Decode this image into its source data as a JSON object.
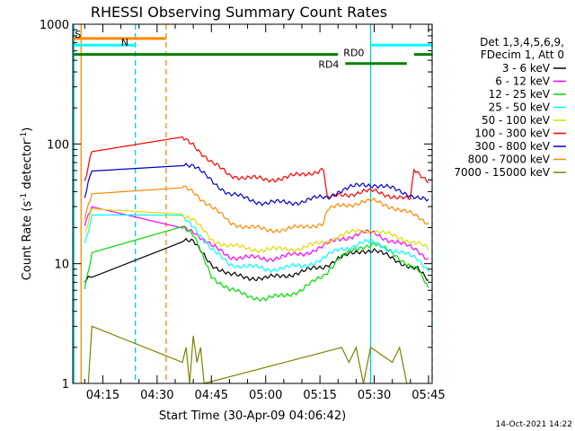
{
  "chart_data": {
    "type": "line",
    "title": "RHESSI Observing Summary Count Rates",
    "xlabel": "Start Time (30-Apr-09 04:06:42)",
    "ylabel": "Count Rate (s⁻¹ detector⁻¹)",
    "ylabel_parts": {
      "main": "Count Rate (s",
      "exp1": "-1",
      "mid": " detector",
      "exp2": "-1",
      "end": ")"
    },
    "yscale": "log",
    "ylim": [
      1,
      1000
    ],
    "xlim": [
      "04:06:42",
      "05:46:00"
    ],
    "x_ticks": [
      "04:15",
      "04:30",
      "04:45",
      "05:00",
      "05:15",
      "05:30",
      "05:45"
    ],
    "y_ticks": [
      "1",
      "10",
      "100",
      "1000"
    ],
    "legend_title": [
      "Det 1,3,4,5,6,9,",
      "FDecim 1, Att 0"
    ],
    "series": [
      {
        "name": "3 - 6 keV",
        "color": "#000000",
        "x": [
          "04:10",
          "04:12",
          "04:37",
          "04:40",
          "04:45",
          "04:50",
          "05:00",
          "05:10",
          "05:16",
          "05:20",
          "05:27",
          "05:30",
          "05:35",
          "05:42",
          "05:45"
        ],
        "y": [
          7,
          8,
          16,
          15,
          10,
          8,
          7.5,
          8.5,
          9.5,
          11,
          13,
          13,
          11,
          9,
          7
        ]
      },
      {
        "name": "6 - 12 keV",
        "color": "#ff00ff",
        "x": [
          "04:10",
          "04:12",
          "04:37",
          "04:40",
          "04:45",
          "04:50",
          "05:00",
          "05:10",
          "05:16",
          "05:20",
          "05:27",
          "05:30",
          "05:35",
          "05:42",
          "05:45"
        ],
        "y": [
          22,
          30,
          20,
          19,
          14,
          11.5,
          11,
          12,
          14,
          16,
          18,
          18,
          15.5,
          13,
          11
        ]
      },
      {
        "name": "12 - 25 keV",
        "color": "#00dd00",
        "x": [
          "04:10",
          "04:12",
          "04:37",
          "04:40",
          "04:45",
          "04:50",
          "05:00",
          "05:10",
          "05:16",
          "05:20",
          "05:27",
          "05:30",
          "05:35",
          "05:42",
          "05:45"
        ],
        "y": [
          6,
          12,
          21,
          17,
          8,
          6,
          5,
          6,
          8,
          11,
          14,
          15,
          12,
          9,
          6
        ]
      },
      {
        "name": "25 - 50 keV",
        "color": "#00ffff",
        "x": [
          "04:10",
          "04:12",
          "04:37",
          "04:40",
          "04:45",
          "04:50",
          "05:00",
          "05:10",
          "05:16",
          "05:20",
          "05:27",
          "05:30",
          "05:35",
          "05:42",
          "05:45"
        ],
        "y": [
          15,
          25,
          24,
          21,
          13,
          10,
          9,
          9.5,
          11,
          13,
          15,
          15,
          13,
          11,
          9
        ]
      },
      {
        "name": "50 - 100 keV",
        "color": "#dddd00",
        "x": [
          "04:10",
          "04:12",
          "04:37",
          "04:40",
          "04:45",
          "04:50",
          "05:00",
          "05:10",
          "05:16",
          "05:20",
          "05:27",
          "05:30",
          "05:35",
          "05:42",
          "05:45"
        ],
        "y": [
          17,
          28,
          26,
          23,
          16,
          14,
          13,
          13.5,
          15,
          17,
          19,
          19,
          17,
          15,
          13
        ]
      },
      {
        "name": "100 - 300 keV",
        "color": "#ff0000",
        "x": [
          "04:10",
          "04:12",
          "04:37",
          "04:40",
          "04:45",
          "04:50",
          "05:00",
          "05:10",
          "05:16",
          "05:17",
          "05:20",
          "05:27",
          "05:30",
          "05:35",
          "05:40",
          "05:41",
          "05:45"
        ],
        "y": [
          50,
          90,
          110,
          100,
          70,
          55,
          50,
          55,
          62,
          35,
          37,
          40,
          40,
          37,
          34,
          60,
          50
        ]
      },
      {
        "name": "300 - 800 keV",
        "color": "#0000cc",
        "x": [
          "04:10",
          "04:12",
          "04:37",
          "04:40",
          "04:45",
          "04:50",
          "05:00",
          "05:10",
          "05:16",
          "05:17",
          "05:20",
          "05:27",
          "05:30",
          "05:35",
          "05:40",
          "05:45"
        ],
        "y": [
          35,
          60,
          70,
          65,
          50,
          38,
          32,
          33,
          36,
          36,
          40,
          46,
          46,
          42,
          38,
          33
        ]
      },
      {
        "name": "800 - 7000 keV",
        "color": "#ff8800",
        "x": [
          "04:10",
          "04:12",
          "04:37",
          "04:40",
          "04:45",
          "04:50",
          "05:00",
          "05:10",
          "05:16",
          "05:17",
          "05:20",
          "05:27",
          "05:30",
          "05:35",
          "05:40",
          "05:45"
        ],
        "y": [
          25,
          40,
          43,
          40,
          30,
          22,
          19,
          20,
          22,
          28,
          30,
          33,
          33,
          30,
          26,
          22
        ]
      },
      {
        "name": "7000 - 15000 keV",
        "color": "#808000",
        "x": [
          "04:11",
          "04:12",
          "04:37",
          "04:38",
          "04:39",
          "04:40",
          "04:41",
          "04:42",
          "04:43",
          "05:21",
          "05:23",
          "05:25",
          "05:27",
          "05:29",
          "05:35",
          "05:37",
          "05:39"
        ],
        "y": [
          1,
          3,
          1.5,
          2,
          1,
          2.5,
          1.5,
          2,
          1,
          2,
          1.5,
          2,
          1,
          2,
          1.5,
          2,
          1
        ]
      }
    ],
    "vlines": [
      {
        "x": "04:07:00",
        "color": "#00cccc",
        "style": "solid"
      },
      {
        "x": "04:09:00",
        "color": "#ff8800",
        "style": "solid"
      },
      {
        "x": "04:24:00",
        "color": "#00cccc",
        "style": "dashed"
      },
      {
        "x": "04:32:30",
        "color": "#ff8800",
        "style": "dashed"
      },
      {
        "x": "05:29:00",
        "color": "#00cccc",
        "style": "solid"
      },
      {
        "x": "05:46:00",
        "color": "#00cccc",
        "style": "dashed"
      }
    ],
    "flag_bars": [
      {
        "label": "S",
        "color": "#ff8800",
        "segments": [
          [
            "04:07:00",
            "04:32:30"
          ]
        ],
        "level": 760
      },
      {
        "label": "N",
        "color": "#00ffff",
        "segments": [
          [
            "04:07:00",
            "04:24:00"
          ],
          [
            "05:29:00",
            "05:46:00"
          ]
        ],
        "level": 670
      },
      {
        "label": "RD0",
        "color": "#008000",
        "segments": [
          [
            "04:07:00",
            "05:20:00"
          ],
          [
            "05:41:00",
            "05:46:00"
          ]
        ],
        "level": 560
      },
      {
        "label": "RD4",
        "color": "#008000",
        "segments": [
          [
            "05:22:00",
            "05:39:00"
          ]
        ],
        "level": 470
      }
    ]
  },
  "footer": {
    "date_stamp": "14-Oct-2021 14:22"
  }
}
